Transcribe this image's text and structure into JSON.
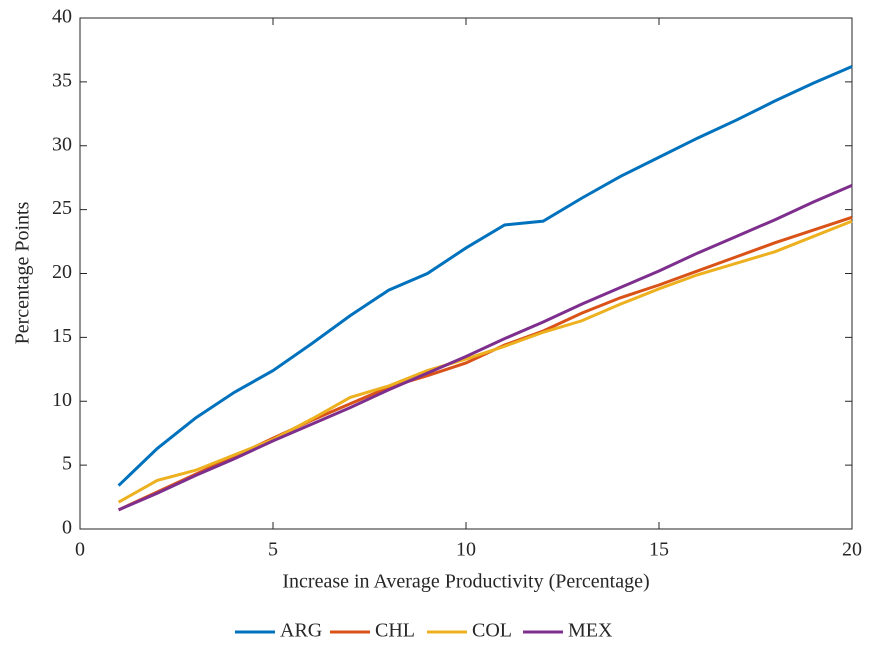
{
  "chart_data": {
    "type": "line",
    "xlabel": "Increase in Average Productivity (Percentage)",
    "ylabel": "Percentage Points",
    "x": [
      1,
      2,
      3,
      4,
      5,
      6,
      7,
      8,
      9,
      10,
      11,
      12,
      13,
      14,
      15,
      16,
      17,
      18,
      19,
      20
    ],
    "series": [
      {
        "name": "ARG",
        "color": "#0072BD",
        "values": [
          3.4,
          6.3,
          8.7,
          10.7,
          12.4,
          14.5,
          16.7,
          18.7,
          20.0,
          22.0,
          23.8,
          24.1,
          25.9,
          27.6,
          29.1,
          30.6,
          32.0,
          33.5,
          34.9,
          36.2
        ]
      },
      {
        "name": "CHL",
        "color": "#D95319",
        "values": [
          1.5,
          2.9,
          4.3,
          5.7,
          7.1,
          8.5,
          9.8,
          11.1,
          12.0,
          13.0,
          14.4,
          15.5,
          16.9,
          18.1,
          19.1,
          20.2,
          21.3,
          22.4,
          23.4,
          24.4
        ]
      },
      {
        "name": "COL",
        "color": "#EDB120",
        "values": [
          2.1,
          3.8,
          4.6,
          5.8,
          7.0,
          8.6,
          10.3,
          11.2,
          12.4,
          13.3,
          14.3,
          15.4,
          16.3,
          17.6,
          18.8,
          19.9,
          20.8,
          21.7,
          22.9,
          24.1
        ]
      },
      {
        "name": "MEX",
        "color": "#7E2F8E",
        "values": [
          1.5,
          2.8,
          4.2,
          5.5,
          6.9,
          8.2,
          9.5,
          10.9,
          12.2,
          13.5,
          14.9,
          16.2,
          17.6,
          18.9,
          20.2,
          21.6,
          22.9,
          24.2,
          25.6,
          26.9
        ]
      }
    ],
    "xlim": [
      0,
      20
    ],
    "xticks": [
      0,
      5,
      10,
      15,
      20
    ],
    "ylim": [
      0,
      40
    ],
    "yticks": [
      0,
      5,
      10,
      15,
      20,
      25,
      30,
      35,
      40
    ],
    "legend": "bottom"
  }
}
